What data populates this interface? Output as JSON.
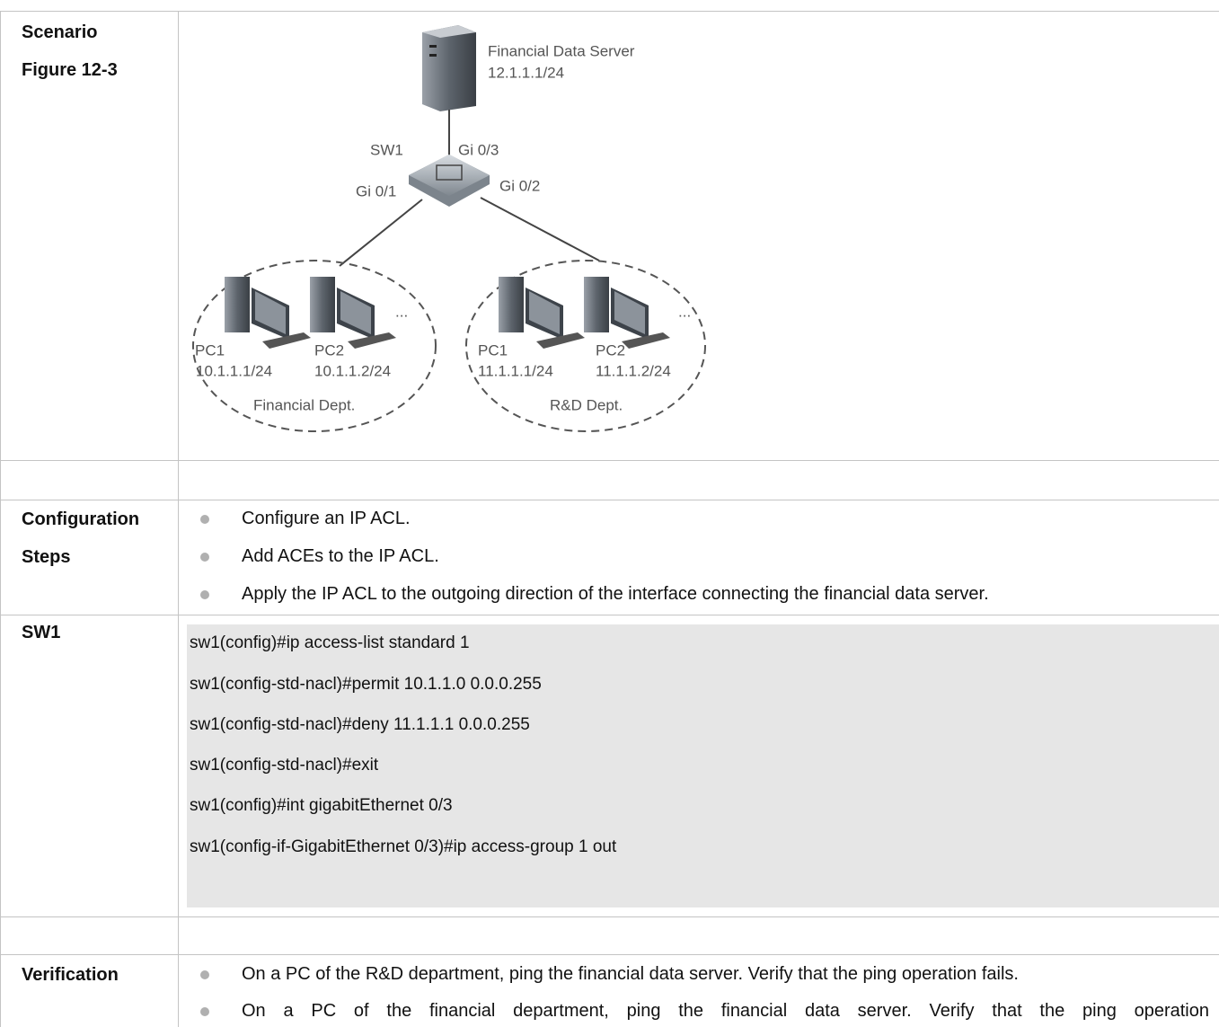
{
  "scenario": {
    "labels": [
      "Scenario",
      "Figure 12-3"
    ],
    "diagram": {
      "server": {
        "name": "Financial Data Server",
        "ip": "12.1.1.1/24"
      },
      "switch": {
        "name": "SW1",
        "ports": [
          "Gi 0/3",
          "Gi 0/1",
          "Gi 0/2"
        ]
      },
      "groups": [
        {
          "name": "Financial Dept.",
          "pcs": [
            {
              "name": "PC1",
              "ip": "10.1.1.1/24"
            },
            {
              "name": "PC2",
              "ip": "10.1.1.2/24"
            }
          ],
          "more": "..."
        },
        {
          "name": "R&D Dept.",
          "pcs": [
            {
              "name": "PC1",
              "ip": "11.1.1.1/24"
            },
            {
              "name": "PC2",
              "ip": "11.1.1.2/24"
            }
          ],
          "more": "..."
        }
      ]
    }
  },
  "config_steps": {
    "label": "Configuration Steps",
    "items": [
      "Configure an IP ACL.",
      "Add ACEs to the IP ACL.",
      "Apply the IP ACL to the outgoing direction of the interface connecting the financial data server."
    ]
  },
  "sw1": {
    "label": "SW1",
    "code": [
      "sw1(config)#ip access-list standard 1",
      "sw1(config-std-nacl)#permit 10.1.1.0 0.0.0.255",
      "sw1(config-std-nacl)#deny 11.1.1.1 0.0.0.255",
      "sw1(config-std-nacl)#exit",
      "sw1(config)#int gigabitEthernet 0/3",
      "sw1(config-if-GigabitEthernet 0/3)#ip access-group 1 out"
    ]
  },
  "verification": {
    "label": "Verification",
    "items": [
      "On a PC of the R&D department, ping the financial data server. Verify that the ping operation fails.",
      "On a PC of the financial department, ping the financial data server. Verify that the ping operation"
    ]
  }
}
